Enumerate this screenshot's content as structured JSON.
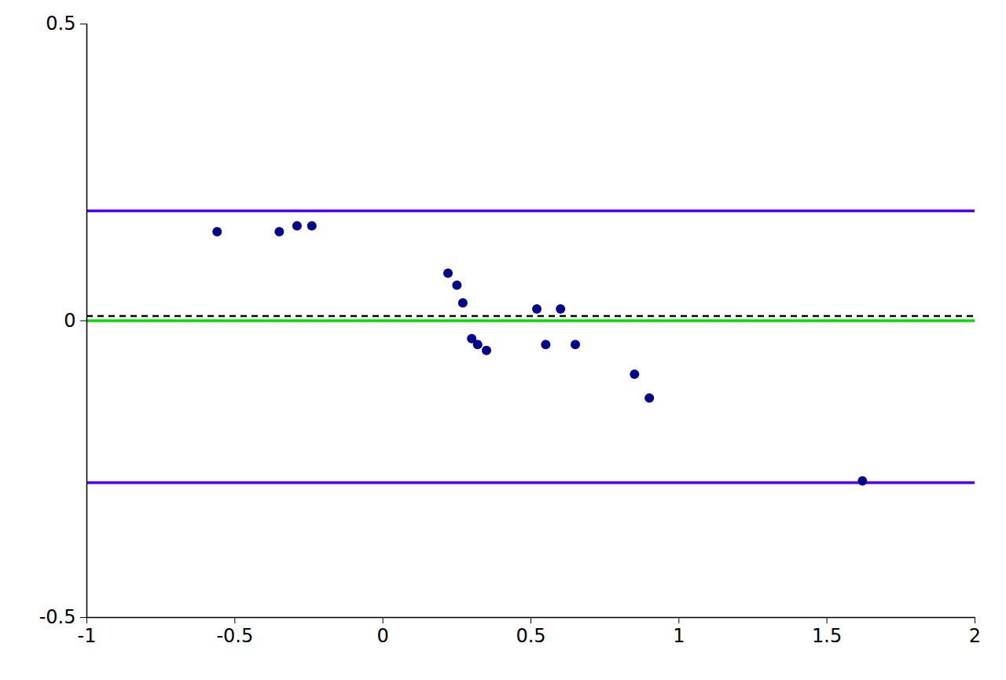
{
  "chart_data": {
    "type": "scatter",
    "x": [
      -0.56,
      -0.35,
      -0.29,
      -0.24,
      0.22,
      0.25,
      0.27,
      0.3,
      0.32,
      0.35,
      0.52,
      0.55,
      0.6,
      0.65,
      0.85,
      0.9,
      1.62
    ],
    "values": [
      0.15,
      0.15,
      0.16,
      0.16,
      0.08,
      0.06,
      0.03,
      -0.03,
      -0.04,
      -0.05,
      0.02,
      -0.04,
      0.02,
      -0.04,
      -0.09,
      -0.13,
      -0.27
    ],
    "color": "#00008B",
    "marker": "circle",
    "hlines": [
      {
        "value": 0.185,
        "color": "#5500FF",
        "line_style": "solid"
      },
      {
        "value": -0.273,
        "color": "#5500FF",
        "line_style": "solid"
      },
      {
        "value": 0.0,
        "color": "#00DD00",
        "line_style": "solid"
      },
      {
        "value": 0.008,
        "color": "#000000",
        "line_style": "dashed"
      }
    ],
    "xlim": [
      -1,
      2
    ],
    "ylim": [
      -0.5,
      0.5
    ],
    "xticks": [
      -1,
      -0.5,
      0,
      0.5,
      1,
      1.5,
      2
    ],
    "yticks": [
      -0.5,
      0,
      0.5
    ],
    "grid": false
  }
}
